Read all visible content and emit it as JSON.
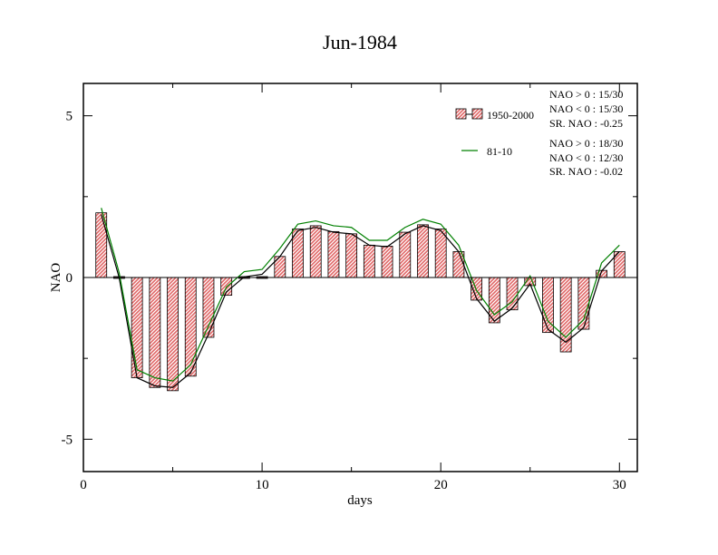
{
  "chart_data": {
    "type": "bar",
    "title": "Jun-1984",
    "xlabel": "days",
    "ylabel": "NAO",
    "xlim": [
      0,
      31
    ],
    "ylim": [
      -6,
      6
    ],
    "x_ticks": [
      0,
      10,
      20,
      30
    ],
    "y_ticks": [
      -5,
      0,
      5
    ],
    "grid": false,
    "x": [
      1,
      2,
      3,
      4,
      5,
      6,
      7,
      8,
      9,
      10,
      11,
      12,
      13,
      14,
      15,
      16,
      17,
      18,
      19,
      20,
      21,
      22,
      23,
      24,
      25,
      26,
      27,
      28,
      29,
      30
    ],
    "series": [
      {
        "name": "1950-2000",
        "kind": "bar",
        "color": "#e06666",
        "values": [
          2.0,
          0.0,
          -3.1,
          -3.4,
          -3.5,
          -3.05,
          -1.85,
          -0.55,
          -0.05,
          0.05,
          0.65,
          1.5,
          1.6,
          1.42,
          1.35,
          1.0,
          0.97,
          1.4,
          1.63,
          1.5,
          0.8,
          -0.7,
          -1.4,
          -1.0,
          -0.25,
          -1.7,
          -2.3,
          -1.6,
          0.22,
          0.8
        ]
      },
      {
        "kind": "line",
        "color": "#000000",
        "values": [
          1.95,
          0.0,
          -3.1,
          -3.35,
          -3.4,
          -2.95,
          -1.75,
          -0.45,
          0.02,
          0.1,
          0.65,
          1.45,
          1.55,
          1.4,
          1.35,
          1.0,
          0.95,
          1.35,
          1.6,
          1.45,
          0.8,
          -0.65,
          -1.35,
          -0.95,
          -0.2,
          -1.6,
          -2.0,
          -1.55,
          0.2,
          0.8
        ]
      },
      {
        "name": "81-10",
        "kind": "line",
        "color": "#008000",
        "values": [
          2.15,
          0.15,
          -2.85,
          -3.1,
          -3.2,
          -2.7,
          -1.5,
          -0.3,
          0.18,
          0.25,
          0.9,
          1.65,
          1.75,
          1.6,
          1.55,
          1.15,
          1.15,
          1.55,
          1.8,
          1.65,
          1.0,
          -0.4,
          -1.15,
          -0.75,
          0.05,
          -1.35,
          -1.85,
          -1.3,
          0.45,
          1.0
        ]
      }
    ],
    "legend": [
      {
        "label": "1950-2000",
        "stats": [
          "NAO > 0 : 15/30",
          "NAO < 0 : 15/30",
          "SR. NAO : -0.25"
        ]
      },
      {
        "label": "81-10",
        "stats": [
          "NAO > 0 : 18/30",
          "NAO < 0 : 12/30",
          "SR. NAO : -0.02"
        ]
      }
    ]
  }
}
